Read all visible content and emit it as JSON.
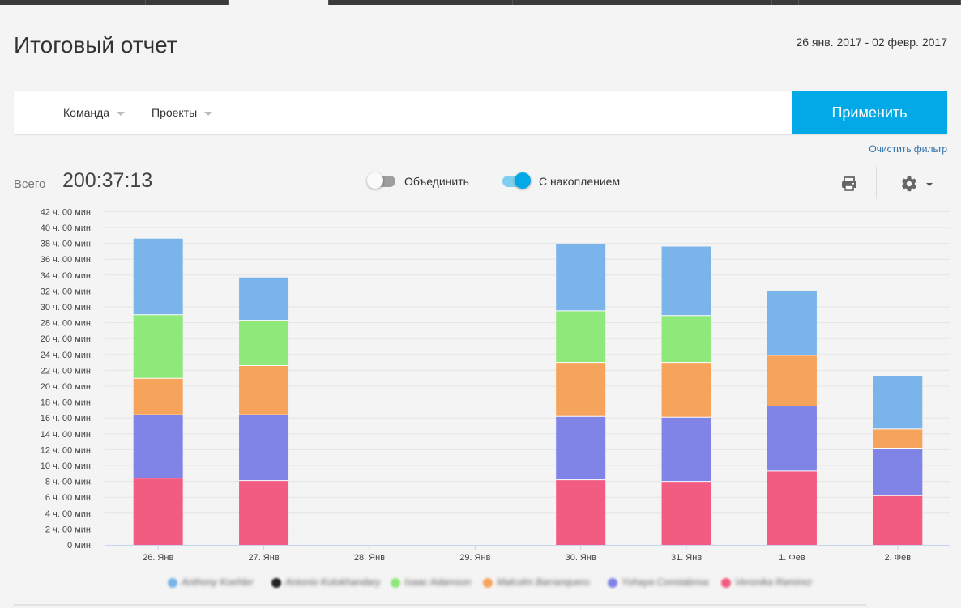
{
  "header": {
    "title": "Итоговый отчет",
    "date_range": "26 янв. 2017 - 02 февр. 2017"
  },
  "filters": {
    "team_label": "Команда",
    "projects_label": "Проекты",
    "apply_label": "Применить",
    "clear_label": "Очистить фильтр"
  },
  "summary": {
    "total_label": "Всего",
    "total_value": "200:37:13"
  },
  "toggles": {
    "merge_label": "Объединить",
    "merge_on": false,
    "cumulative_label": "С накоплением",
    "cumulative_on": true
  },
  "toolbar": {
    "print_icon": "printer-icon",
    "settings_icon": "gear-icon"
  },
  "colors": {
    "accent": "#03a9e6",
    "series": [
      "#f25c82",
      "#7f84e6",
      "#f6a45c",
      "#8ee87a",
      "#7bb4ea"
    ]
  },
  "legend": {
    "items": [
      {
        "name": "Anthony Koehler",
        "color": "#7bb4ea"
      },
      {
        "name": "Antonio Kolokhandary",
        "color": "#222222"
      },
      {
        "name": "Isaac Adamson",
        "color": "#8ee87a"
      },
      {
        "name": "Malcolm Barranquero",
        "color": "#f6a45c"
      },
      {
        "name": "Yohaya Constabnsa",
        "color": "#7f84e6"
      },
      {
        "name": "Veronika Ramirez",
        "color": "#f25c82"
      }
    ]
  },
  "chart_data": {
    "type": "bar",
    "stacked": true,
    "categories": [
      "26. Янв",
      "27. Янв",
      "28. Янв",
      "29. Янв",
      "30. Янв",
      "31. Янв",
      "1. Фев",
      "2. Фев"
    ],
    "y_ticks": [
      "0 мин.",
      "2 ч. 00 мин.",
      "4 ч. 00 мин.",
      "6 ч. 00 мин.",
      "8 ч. 00 мин.",
      "10 ч. 00 мин.",
      "12 ч. 00 мин.",
      "14 ч. 00 мин.",
      "16 ч. 00 мин.",
      "18 ч. 00 мин.",
      "20 ч. 00 мин.",
      "22 ч. 00 мин.",
      "24 ч. 00 мин.",
      "26 ч. 00 мин.",
      "28 ч. 00 мин.",
      "30 ч. 00 мин.",
      "32 ч. 00 мин.",
      "34 ч. 00 мин.",
      "36 ч. 00 мин.",
      "38 ч. 00 мин.",
      "40 ч. 00 мин.",
      "42 ч. 00 мин."
    ],
    "ylim": [
      0,
      42
    ],
    "unit": "hours",
    "series": [
      {
        "name": "Veronika Ramirez",
        "color": "#f25c82",
        "values": [
          8.4,
          8.1,
          0,
          0,
          8.2,
          8.0,
          9.3,
          6.2
        ]
      },
      {
        "name": "Yohaya Constabnsa",
        "color": "#7f84e6",
        "values": [
          8.0,
          8.3,
          0,
          0,
          8.0,
          8.1,
          8.2,
          6.0
        ]
      },
      {
        "name": "Malcolm Barranquero",
        "color": "#f6a45c",
        "values": [
          4.6,
          6.2,
          0,
          0,
          6.8,
          6.9,
          6.4,
          2.4
        ]
      },
      {
        "name": "Isaac Adamson",
        "color": "#8ee87a",
        "values": [
          8.0,
          5.7,
          0,
          0,
          6.5,
          5.9,
          0,
          0
        ]
      },
      {
        "name": "Anthony Koehler",
        "color": "#7bb4ea",
        "values": [
          9.6,
          5.4,
          0,
          0,
          8.4,
          8.7,
          8.1,
          6.7
        ]
      }
    ]
  }
}
